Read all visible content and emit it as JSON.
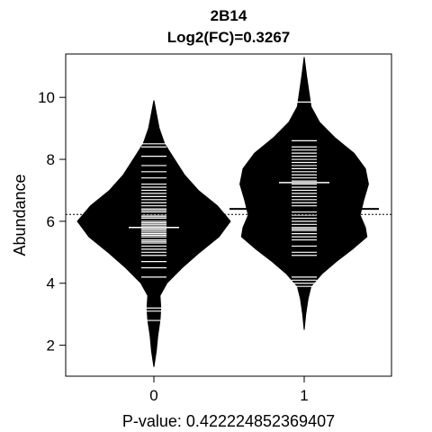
{
  "chart_data": {
    "type": "beanplot",
    "title": "2B14",
    "subtitle": "Log2(FC)=0.3267",
    "xlabel": "P-value: 0.422224852369407",
    "ylabel": "Abundance",
    "categories": [
      "0",
      "1"
    ],
    "ylim": [
      1,
      11.4
    ],
    "yticks": [
      2,
      4,
      6,
      8,
      10
    ],
    "overall_mean": 6.22,
    "groups": [
      {
        "name": "0",
        "mean": 6.05,
        "median": 5.8,
        "range": [
          1.3,
          9.9
        ],
        "density": [
          [
            1.3,
            0.0
          ],
          [
            1.8,
            0.03
          ],
          [
            2.3,
            0.05
          ],
          [
            2.8,
            0.08
          ],
          [
            3.2,
            0.09
          ],
          [
            3.6,
            0.08
          ],
          [
            4.0,
            0.17
          ],
          [
            4.5,
            0.37
          ],
          [
            5.0,
            0.6
          ],
          [
            5.5,
            0.85
          ],
          [
            6.0,
            1.0
          ],
          [
            6.5,
            0.83
          ],
          [
            7.0,
            0.58
          ],
          [
            7.5,
            0.4
          ],
          [
            8.0,
            0.27
          ],
          [
            8.5,
            0.14
          ],
          [
            9.0,
            0.07
          ],
          [
            9.5,
            0.03
          ],
          [
            9.9,
            0.0
          ]
        ],
        "values": [
          2.8,
          3.1,
          3.2,
          4.2,
          4.5,
          4.7,
          4.9,
          5.0,
          5.1,
          5.2,
          5.3,
          5.35,
          5.4,
          5.5,
          5.55,
          5.6,
          5.65,
          5.7,
          5.75,
          5.8,
          5.85,
          5.9,
          5.95,
          6.0,
          6.05,
          6.1,
          6.15,
          6.2,
          6.3,
          6.35,
          6.4,
          6.5,
          6.6,
          6.7,
          6.8,
          6.9,
          7.0,
          7.1,
          7.2,
          7.4,
          7.6,
          7.8,
          8.1,
          8.4,
          8.5
        ]
      },
      {
        "name": "1",
        "mean": 6.4,
        "median": 7.25,
        "range": [
          2.5,
          11.3
        ],
        "density": [
          [
            2.5,
            0.0
          ],
          [
            3.0,
            0.02
          ],
          [
            3.5,
            0.05
          ],
          [
            3.9,
            0.09
          ],
          [
            4.3,
            0.23
          ],
          [
            4.7,
            0.42
          ],
          [
            5.1,
            0.63
          ],
          [
            5.5,
            0.82
          ],
          [
            5.8,
            0.8
          ],
          [
            6.2,
            0.73
          ],
          [
            6.7,
            0.78
          ],
          [
            7.2,
            0.84
          ],
          [
            7.7,
            0.8
          ],
          [
            8.2,
            0.65
          ],
          [
            8.7,
            0.4
          ],
          [
            9.2,
            0.2
          ],
          [
            9.7,
            0.09
          ],
          [
            10.2,
            0.06
          ],
          [
            10.7,
            0.03
          ],
          [
            11.3,
            0.0
          ]
        ],
        "values": [
          3.9,
          4.0,
          4.1,
          4.2,
          4.9,
          5.0,
          5.2,
          5.4,
          5.5,
          5.6,
          5.7,
          5.75,
          5.8,
          5.9,
          6.0,
          6.1,
          6.2,
          6.3,
          6.4,
          6.5,
          6.6,
          6.7,
          6.8,
          6.9,
          7.0,
          7.1,
          7.2,
          7.3,
          7.4,
          7.5,
          7.6,
          7.7,
          7.8,
          7.9,
          8.0,
          8.1,
          8.2,
          8.3,
          8.4,
          8.6,
          9.85
        ]
      }
    ]
  }
}
